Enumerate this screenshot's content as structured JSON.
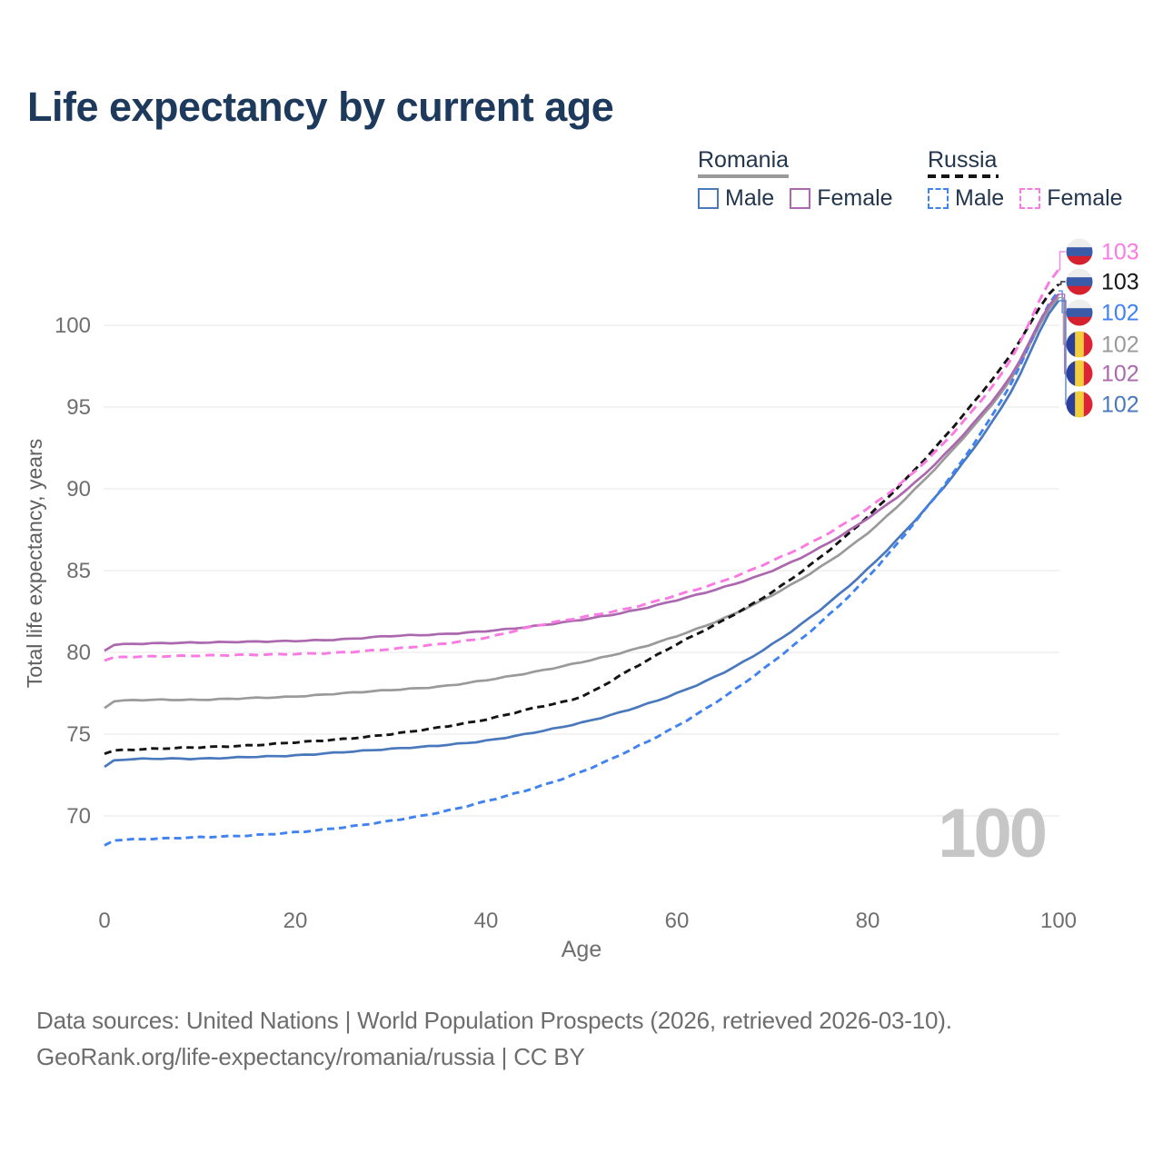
{
  "title": "Life expectancy by current age",
  "legend": {
    "groups": [
      {
        "name": "Romania",
        "line_style": "solid",
        "line_color": "#9a9a9a",
        "items": [
          {
            "label": "Male",
            "color": "#4a78bd",
            "dashed": false
          },
          {
            "label": "Female",
            "color": "#ab68ae",
            "dashed": false
          }
        ]
      },
      {
        "name": "Russia",
        "line_style": "dashed",
        "line_color": "#141414",
        "items": [
          {
            "label": "Male",
            "color": "#3f82f0",
            "dashed": true
          },
          {
            "label": "Female",
            "color": "#f97ae3",
            "dashed": true
          }
        ]
      }
    ]
  },
  "axes": {
    "y_title": "Total life expectancy, years",
    "y_ticks": [
      70,
      75,
      80,
      85,
      90,
      95,
      100
    ],
    "x_ticks": [
      0,
      20,
      40,
      60,
      80,
      100
    ],
    "x_title": "Age"
  },
  "watermark": "100",
  "end_labels": [
    {
      "value": "103",
      "flag": "russia",
      "color": "#f97ae3",
      "series": "russia_female"
    },
    {
      "value": "103",
      "flag": "russia",
      "color": "#141414",
      "series": "russia_total"
    },
    {
      "value": "102",
      "flag": "russia",
      "color": "#3f82f0",
      "series": "russia_male"
    },
    {
      "value": "102",
      "flag": "romania",
      "color": "#9a9a9a",
      "series": "romania_total"
    },
    {
      "value": "102",
      "flag": "romania",
      "color": "#ab68ae",
      "series": "romania_female"
    },
    {
      "value": "102",
      "flag": "romania",
      "color": "#4a78bd",
      "series": "romania_male"
    }
  ],
  "flag_colors": {
    "russia": {
      "stripes": [
        "#ededed",
        "#3a5ca8",
        "#d5212e"
      ],
      "orientation": "horizontal"
    },
    "romania": {
      "stripes": [
        "#2b3f9b",
        "#f2ce3d",
        "#dd2337"
      ],
      "orientation": "vertical"
    }
  },
  "footer": {
    "line1": "Data sources: United Nations | World Population Prospects (2026, retrieved 2026-03-10).",
    "line2": "GeoRank.org/life-expectancy/romania/russia | CC BY"
  },
  "chart_data": {
    "type": "line",
    "title": "Life expectancy by current age",
    "xlabel": "Age",
    "ylabel": "Total life expectancy, years",
    "xlim": [
      0,
      100
    ],
    "y_tick_range": [
      70,
      100
    ],
    "grid": true,
    "legend_position": "top-right",
    "ages": [
      0,
      1,
      5,
      10,
      15,
      20,
      25,
      30,
      35,
      40,
      45,
      50,
      55,
      60,
      65,
      70,
      75,
      80,
      85,
      90,
      95,
      100
    ],
    "series": [
      {
        "id": "romania_total",
        "name": "Romania Both sexes",
        "color": "#9a9a9a",
        "dashed": false,
        "dash": null,
        "end_value": 102,
        "values": [
          76.6,
          77.0,
          77.1,
          77.1,
          77.2,
          77.3,
          77.5,
          77.7,
          77.9,
          78.3,
          78.8,
          79.4,
          80.1,
          81.0,
          82.1,
          83.5,
          85.2,
          87.3,
          90.0,
          93.1,
          96.7,
          101.7
        ]
      },
      {
        "id": "russia_total",
        "name": "Russia Both sexes",
        "color": "#141414",
        "dashed": true,
        "dash": "8 5",
        "end_value": 103,
        "values": [
          73.8,
          74.0,
          74.1,
          74.2,
          74.3,
          74.5,
          74.7,
          75.0,
          75.4,
          75.9,
          76.6,
          77.3,
          78.9,
          80.5,
          82.0,
          83.7,
          85.8,
          88.3,
          91.2,
          94.5,
          98.2,
          102.5
        ]
      },
      {
        "id": "romania_male",
        "name": "Romania Male",
        "color": "#4a78bd",
        "dashed": false,
        "dash": null,
        "end_value": 102,
        "values": [
          73.0,
          73.4,
          73.5,
          73.5,
          73.6,
          73.7,
          73.9,
          74.1,
          74.3,
          74.6,
          75.1,
          75.7,
          76.5,
          77.5,
          78.8,
          80.5,
          82.6,
          85.1,
          88.1,
          91.6,
          95.9,
          101.5
        ]
      },
      {
        "id": "russia_male",
        "name": "Russia Male",
        "color": "#3f82f0",
        "dashed": true,
        "dash": "8 5",
        "end_value": 102,
        "values": [
          68.2,
          68.5,
          68.6,
          68.7,
          68.8,
          69.0,
          69.3,
          69.7,
          70.2,
          70.9,
          71.7,
          72.7,
          74.0,
          75.5,
          77.3,
          79.4,
          81.8,
          84.6,
          88.0,
          91.8,
          96.4,
          102.1
        ]
      },
      {
        "id": "romania_female",
        "name": "Romania Female",
        "color": "#ab68ae",
        "dashed": false,
        "dash": null,
        "end_value": 102,
        "values": [
          80.1,
          80.45,
          80.55,
          80.6,
          80.65,
          80.7,
          80.8,
          81.0,
          81.1,
          81.3,
          81.6,
          82.0,
          82.5,
          83.2,
          84.0,
          85.0,
          86.4,
          88.2,
          90.4,
          93.3,
          96.9,
          101.9
        ]
      },
      {
        "id": "russia_female",
        "name": "Russia Female",
        "color": "#f97ae3",
        "dashed": true,
        "dash": "10 6",
        "end_value": 103,
        "values": [
          79.5,
          79.7,
          79.75,
          79.8,
          79.85,
          79.9,
          80.0,
          80.2,
          80.5,
          80.9,
          81.6,
          82.15,
          82.7,
          83.5,
          84.4,
          85.6,
          87.0,
          88.8,
          91.1,
          94.1,
          97.9,
          103.4
        ]
      }
    ]
  }
}
